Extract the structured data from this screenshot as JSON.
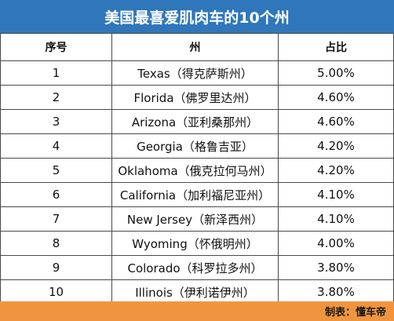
{
  "title": "美国最喜爱肌肉车的10个州",
  "table": {
    "headers": [
      "序号",
      "州",
      "占比"
    ],
    "rows": [
      [
        "1",
        "Texas（得克萨斯州）",
        "5.00%"
      ],
      [
        "2",
        "Florida（佛罗里达州）",
        "4.60%"
      ],
      [
        "3",
        "Arizona（亚利桑那州）",
        "4.60%"
      ],
      [
        "4",
        "Georgia（格鲁吉亚）",
        "4.20%"
      ],
      [
        "5",
        "Oklahoma（俄克拉何马州）",
        "4.20%"
      ],
      [
        "6",
        "California（加利福尼亚州）",
        "4.10%"
      ],
      [
        "7",
        "New Jersey（新泽西州）",
        "4.10%"
      ],
      [
        "8",
        "Wyoming（怀俄明州）",
        "4.00%"
      ],
      [
        "9",
        "Colorado（科罗拉多州）",
        "3.80%"
      ],
      [
        "10",
        "Illinois（伊利诺伊州）",
        "3.80%"
      ]
    ]
  },
  "footer": {
    "credit": "制表：懂车帝"
  },
  "colors": {
    "title_bar": "#2f77ba",
    "footer_bar": "#f0953f",
    "grid": "#4a4a4a"
  }
}
